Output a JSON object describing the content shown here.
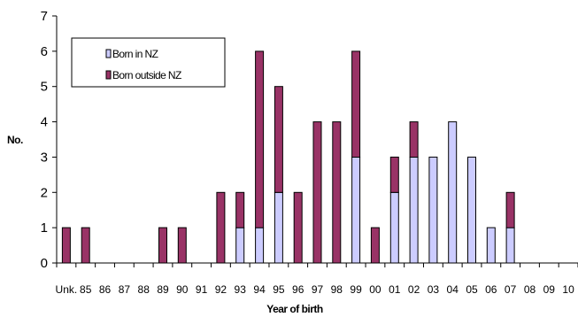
{
  "chart_data": {
    "type": "bar",
    "stacked": true,
    "title": "",
    "xlabel": "Year of birth",
    "ylabel": "No.",
    "ylim": [
      0,
      7
    ],
    "yticks": [
      0,
      1,
      2,
      3,
      4,
      5,
      6,
      7
    ],
    "grid": false,
    "legend_position": "top-left",
    "categories": [
      "Unk.",
      "85",
      "86",
      "87",
      "88",
      "89",
      "90",
      "91",
      "92",
      "93",
      "94",
      "95",
      "96",
      "97",
      "98",
      "99",
      "00",
      "01",
      "02",
      "03",
      "04",
      "05",
      "06",
      "07",
      "08",
      "09",
      "10"
    ],
    "series": [
      {
        "name": "Born in NZ",
        "color": "#ccccff",
        "values": [
          0,
          0,
          0,
          0,
          0,
          0,
          0,
          0,
          0,
          1,
          1,
          2,
          0,
          0,
          0,
          3,
          0,
          2,
          3,
          3,
          4,
          3,
          1,
          1,
          0,
          0,
          0
        ]
      },
      {
        "name": "Born outside NZ",
        "color": "#993366",
        "values": [
          1,
          1,
          0,
          0,
          0,
          1,
          1,
          0,
          2,
          1,
          5,
          3,
          2,
          4,
          4,
          3,
          1,
          1,
          1,
          0,
          0,
          0,
          0,
          1,
          0,
          0,
          0
        ]
      }
    ]
  }
}
